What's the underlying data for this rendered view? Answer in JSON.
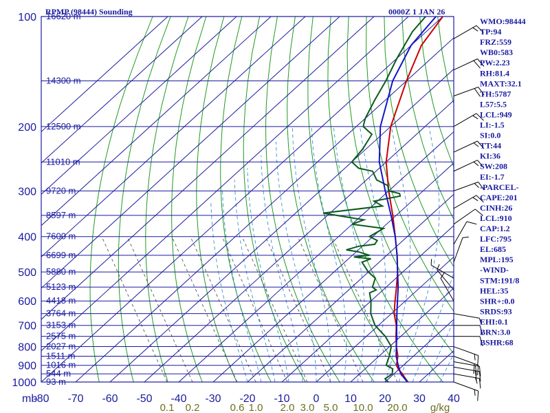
{
  "chart_data": {
    "type": "skew-t sounding",
    "title": "RPMP (98444) Sounding",
    "valid_time": "0000Z  1 JAN 26",
    "pressure_axis": {
      "unit_label": "mb",
      "levels": [
        100,
        200,
        300,
        400,
        500,
        600,
        700,
        800,
        900,
        1000
      ],
      "range": [
        100,
        1000
      ]
    },
    "temperature_axis": {
      "ticks": [
        "-80",
        "-70",
        "-60",
        "-50",
        "-40",
        "-30",
        "-20",
        "-10",
        "0",
        "10",
        "20",
        "30",
        "40"
      ],
      "range": [
        -80,
        40
      ]
    },
    "mixing_ratio_axis": {
      "unit_label": "g/kg",
      "ticks": [
        "0.1",
        "0.2",
        "0.6",
        "1.0",
        "2.0",
        "3.0",
        "5.0",
        "10.0",
        "20.0"
      ]
    },
    "height_labels": [
      {
        "p": 100,
        "label": "16620 m"
      },
      {
        "p": 150,
        "label": "14300 m"
      },
      {
        "p": 200,
        "label": "12500 m"
      },
      {
        "p": 250,
        "label": "11010 m"
      },
      {
        "p": 300,
        "label": "9720 m"
      },
      {
        "p": 350,
        "label": "8597 m"
      },
      {
        "p": 400,
        "label": "7600 m"
      },
      {
        "p": 450,
        "label": "6699 m"
      },
      {
        "p": 500,
        "label": "5880 m"
      },
      {
        "p": 550,
        "label": "5123 m"
      },
      {
        "p": 600,
        "label": "4418 m"
      },
      {
        "p": 650,
        "label": "3764 m"
      },
      {
        "p": 700,
        "label": "3153 m"
      },
      {
        "p": 750,
        "label": "2575 m"
      },
      {
        "p": 800,
        "label": "2027 m"
      },
      {
        "p": 850,
        "label": "1511 m"
      },
      {
        "p": 900,
        "label": "1016 m"
      },
      {
        "p": 950,
        "label": "544 m"
      },
      {
        "p": 1000,
        "label": "93 m"
      }
    ],
    "series": [
      {
        "role": "temperature",
        "color": "#c80000",
        "points": [
          [
            1000,
            26.5
          ],
          [
            950,
            22.5
          ],
          [
            925,
            20
          ],
          [
            900,
            18
          ],
          [
            850,
            15.5
          ],
          [
            800,
            12
          ],
          [
            750,
            8.6
          ],
          [
            700,
            5.2
          ],
          [
            650,
            0.8
          ],
          [
            600,
            -3
          ],
          [
            550,
            -7
          ],
          [
            500,
            -11.5
          ],
          [
            450,
            -17
          ],
          [
            400,
            -23.5
          ],
          [
            350,
            -31
          ],
          [
            300,
            -40
          ],
          [
            250,
            -50
          ],
          [
            200,
            -60
          ],
          [
            150,
            -70
          ],
          [
            120,
            -77
          ],
          [
            100,
            -80
          ]
        ]
      },
      {
        "role": "dewpoint",
        "color": "#0a5a1e",
        "points": [
          [
            1000,
            21
          ],
          [
            980,
            19
          ],
          [
            950,
            19.5
          ],
          [
            920,
            18
          ],
          [
            900,
            15
          ],
          [
            850,
            13
          ],
          [
            800,
            10.5
          ],
          [
            750,
            5.5
          ],
          [
            700,
            -1
          ],
          [
            650,
            -6
          ],
          [
            600,
            -10
          ],
          [
            570,
            -13
          ],
          [
            560,
            -12
          ],
          [
            550,
            -14
          ],
          [
            520,
            -16
          ],
          [
            500,
            -20
          ],
          [
            470,
            -25
          ],
          [
            460,
            -23.5
          ],
          [
            455,
            -29
          ],
          [
            450,
            -25
          ],
          [
            440,
            -29.5
          ],
          [
            435,
            -33.5
          ],
          [
            425,
            -31
          ],
          [
            420,
            -27
          ],
          [
            410,
            -27.5
          ],
          [
            400,
            -31
          ],
          [
            380,
            -29.5
          ],
          [
            370,
            -40
          ],
          [
            360,
            -38
          ],
          [
            345,
            -52
          ],
          [
            330,
            -37
          ],
          [
            320,
            -41
          ],
          [
            310,
            -35
          ],
          [
            305,
            -36
          ],
          [
            300,
            -40
          ],
          [
            290,
            -42
          ],
          [
            280,
            -47
          ],
          [
            265,
            -51
          ],
          [
            260,
            -56
          ],
          [
            250,
            -60
          ],
          [
            230,
            -61
          ],
          [
            210,
            -63
          ],
          [
            200,
            -68
          ],
          [
            190,
            -70
          ],
          [
            170,
            -73
          ],
          [
            150,
            -76
          ],
          [
            130,
            -80
          ],
          [
            110,
            -84
          ],
          [
            100,
            -85
          ]
        ]
      },
      {
        "role": "parcel",
        "color": "#1414c8",
        "points": [
          [
            1000,
            26.5
          ],
          [
            950,
            22
          ],
          [
            900,
            18.5
          ],
          [
            850,
            15
          ],
          [
            800,
            12
          ],
          [
            750,
            8.8
          ],
          [
            700,
            5.3
          ],
          [
            650,
            1.6
          ],
          [
            600,
            -2.3
          ],
          [
            550,
            -6.5
          ],
          [
            500,
            -11.5
          ],
          [
            450,
            -17
          ],
          [
            400,
            -23.5
          ],
          [
            350,
            -31.5
          ],
          [
            300,
            -41
          ],
          [
            250,
            -52
          ],
          [
            200,
            -63
          ],
          [
            150,
            -74
          ],
          [
            120,
            -80
          ],
          [
            100,
            -82
          ]
        ]
      }
    ],
    "wind_barbs": [
      {
        "p": 115,
        "dir": 60,
        "kt": 15
      },
      {
        "p": 140,
        "dir": 65,
        "kt": 20
      },
      {
        "p": 165,
        "dir": 70,
        "kt": 20
      },
      {
        "p": 200,
        "dir": 60,
        "kt": 15
      },
      {
        "p": 235,
        "dir": 65,
        "kt": 15
      },
      {
        "p": 265,
        "dir": 65,
        "kt": 15
      },
      {
        "p": 300,
        "dir": 70,
        "kt": 15
      },
      {
        "p": 335,
        "dir": 60,
        "kt": 15
      },
      {
        "p": 370,
        "dir": 55,
        "kt": 10
      },
      {
        "p": 420,
        "dir": 30,
        "kt": 10
      },
      {
        "p": 470,
        "dir": 20,
        "kt": 5
      },
      {
        "p": 520,
        "dir": 300,
        "kt": 5
      },
      {
        "p": 560,
        "dir": 320,
        "kt": 5
      },
      {
        "p": 600,
        "dir": 330,
        "kt": 5
      },
      {
        "p": 650,
        "dir": 100,
        "kt": 5
      },
      {
        "p": 700,
        "dir": 90,
        "kt": 10
      },
      {
        "p": 750,
        "dir": 90,
        "kt": 10
      },
      {
        "p": 800,
        "dir": 110,
        "kt": 15
      },
      {
        "p": 850,
        "dir": 110,
        "kt": 20
      },
      {
        "p": 880,
        "dir": 100,
        "kt": 20
      },
      {
        "p": 910,
        "dir": 100,
        "kt": 20
      },
      {
        "p": 950,
        "dir": 100,
        "kt": 15
      },
      {
        "p": 1000,
        "dir": 110,
        "kt": 15
      }
    ],
    "colors": {
      "isobar": "#1a1aa0",
      "isotherm": "#1a1aa0",
      "dry_adiabat": "#1e9a1e",
      "mixing_ratio": "#555555",
      "moist_adiabat": "#3a8fd0",
      "label_text": "#1a1aa0",
      "mixing_label_text": "#6e6e20"
    },
    "grid": true
  },
  "indices": [
    "WMO:98444",
    "TP:94",
    "FRZ:559",
    "WB0:583",
    "PW:2.23",
    "RH:81.4",
    "MAXT:32.1",
    "TH:5787",
    "L57:5.5",
    "LCL:949",
    "LI:-1.5",
    "SI:0.0",
    "TT:44",
    "KI:36",
    "SW:208",
    "EI:-1.7",
    "-PARCEL-",
    "CAPE:201",
    "CINH:26",
    "LCL:910",
    "CAP:1.2",
    "LFC:795",
    "EL:685",
    "MPL:195",
    "-WIND-",
    "STM:191/8",
    "HEL:35",
    "SHR+:0.0",
    "SRDS:93",
    "EHI:0.1",
    "BRN:3.0",
    "BSHR:68"
  ]
}
